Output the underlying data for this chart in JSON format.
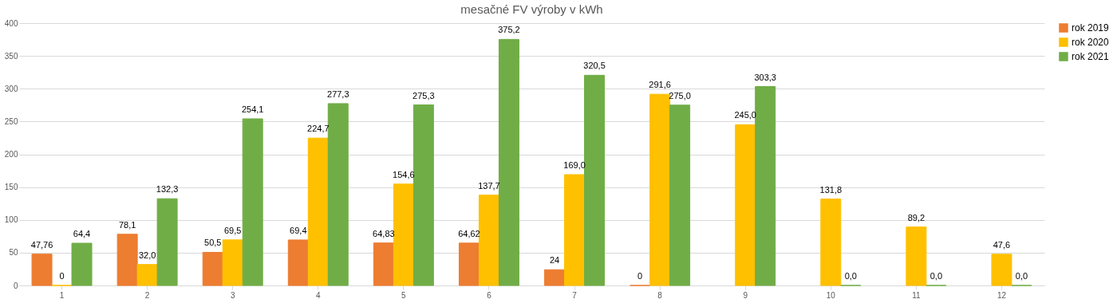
{
  "chart_data": {
    "type": "bar",
    "title": "mesačné FV výroby v kWh",
    "categories": [
      "1",
      "2",
      "3",
      "4",
      "5",
      "6",
      "7",
      "8",
      "9",
      "10",
      "11",
      "12"
    ],
    "series": [
      {
        "name": "rok 2019",
        "color": "#ed7d31",
        "values": [
          47.76,
          78.1,
          50.5,
          69.4,
          64.83,
          64.62,
          24,
          0,
          null,
          null,
          null,
          null
        ],
        "value_labels": [
          "47,76",
          "78,1",
          "50,5",
          "69,4",
          "64,83",
          "64,62",
          "24",
          "0",
          null,
          null,
          null,
          null
        ]
      },
      {
        "name": "rok 2020",
        "color": "#ffc000",
        "values": [
          0,
          32.0,
          69.5,
          224.7,
          154.6,
          137.7,
          169.0,
          291.6,
          245.0,
          131.8,
          89.2,
          47.6
        ],
        "value_labels": [
          "0",
          "32,0",
          "69,5",
          "224,7",
          "154,6",
          "137,7",
          "169,0",
          "291,6",
          "245,0",
          "131,8",
          "89,2",
          "47,6"
        ]
      },
      {
        "name": "rok 2021",
        "color": "#70ad47",
        "values": [
          64.4,
          132.3,
          254.1,
          277.3,
          275.3,
          375.2,
          320.5,
          275.0,
          303.3,
          0.0,
          0.0,
          0.0
        ],
        "value_labels": [
          "64,4",
          "132,3",
          "254,1",
          "277,3",
          "275,3",
          "375,2",
          "320,5",
          "275,0",
          "303,3",
          "0,0",
          "0,0",
          "0,0"
        ]
      }
    ],
    "ylim": [
      0,
      400
    ],
    "yticks": [
      0,
      50,
      100,
      150,
      200,
      250,
      300,
      350,
      400
    ],
    "grid": "y",
    "legend": "right"
  }
}
